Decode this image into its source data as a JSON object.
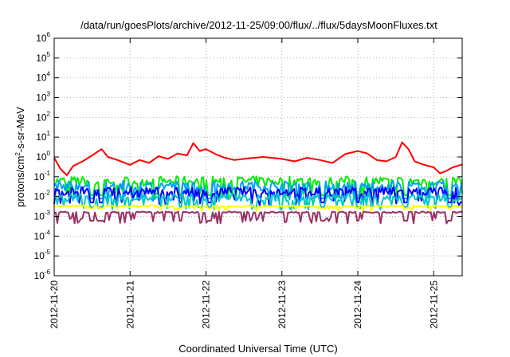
{
  "chart_data": {
    "type": "line",
    "title": "/data/run/goesPlots/archive/2012-11-25/09:00/flux/../flux/5daysMoonFluxes.txt",
    "xlabel": "Coordinated Universal Time (UTC)",
    "ylabel": {
      "prefix": "protons/cm",
      "sup": "2",
      "suffix": "-s-sr-MeV"
    },
    "y_scale": "log",
    "ylim": [
      1e-06,
      1000000.0
    ],
    "y_ticks": [
      {
        "base": "10",
        "exp": "-6"
      },
      {
        "base": "10",
        "exp": "-5"
      },
      {
        "base": "10",
        "exp": "-4"
      },
      {
        "base": "10",
        "exp": "-3"
      },
      {
        "base": "10",
        "exp": "-2"
      },
      {
        "base": "10",
        "exp": "-1"
      },
      {
        "base": "10",
        "exp": "0"
      },
      {
        "base": "10",
        "exp": "1"
      },
      {
        "base": "10",
        "exp": "2"
      },
      {
        "base": "10",
        "exp": "3"
      },
      {
        "base": "10",
        "exp": "4"
      },
      {
        "base": "10",
        "exp": "5"
      },
      {
        "base": "10",
        "exp": "6"
      }
    ],
    "x_ticks": [
      "2012-11-20",
      "2012-11-21",
      "2012-11-22",
      "2012-11-23",
      "2012-11-24",
      "2012-11-25"
    ],
    "xlim": [
      "2012-11-20T00:00",
      "2012-11-25T09:00"
    ],
    "grid": true,
    "series": [
      {
        "color": "#ff0000",
        "points": [
          [
            "2012-11-20T00:00",
            0.9
          ],
          [
            "2012-11-20T02:00",
            0.25
          ],
          [
            "2012-11-20T04:00",
            0.12
          ],
          [
            "2012-11-20T06:00",
            0.35
          ],
          [
            "2012-11-20T09:00",
            0.6
          ],
          [
            "2012-11-20T12:00",
            1.2
          ],
          [
            "2012-11-20T15:00",
            2.5
          ],
          [
            "2012-11-20T17:00",
            1.0
          ],
          [
            "2012-11-20T20:00",
            0.7
          ],
          [
            "2012-11-21T00:00",
            0.4
          ],
          [
            "2012-11-21T03:00",
            0.7
          ],
          [
            "2012-11-21T06:00",
            0.5
          ],
          [
            "2012-11-21T09:00",
            1.1
          ],
          [
            "2012-11-21T12:00",
            0.8
          ],
          [
            "2012-11-21T15:00",
            1.5
          ],
          [
            "2012-11-21T18:00",
            1.2
          ],
          [
            "2012-11-21T20:00",
            5.0
          ],
          [
            "2012-11-21T22:00",
            2.0
          ],
          [
            "2012-11-22T00:00",
            2.5
          ],
          [
            "2012-11-22T03:00",
            1.4
          ],
          [
            "2012-11-22T06:00",
            0.9
          ],
          [
            "2012-11-22T09:00",
            0.7
          ],
          [
            "2012-11-22T12:00",
            0.8
          ],
          [
            "2012-11-22T15:00",
            0.9
          ],
          [
            "2012-11-22T18:00",
            1.0
          ],
          [
            "2012-11-23T00:00",
            0.8
          ],
          [
            "2012-11-23T04:00",
            0.6
          ],
          [
            "2012-11-23T08:00",
            0.9
          ],
          [
            "2012-11-23T12:00",
            0.7
          ],
          [
            "2012-11-23T16:00",
            0.5
          ],
          [
            "2012-11-23T20:00",
            1.4
          ],
          [
            "2012-11-24T00:00",
            2.0
          ],
          [
            "2012-11-24T03:00",
            1.5
          ],
          [
            "2012-11-24T06:00",
            0.7
          ],
          [
            "2012-11-24T09:00",
            0.6
          ],
          [
            "2012-11-24T12:00",
            1.0
          ],
          [
            "2012-11-24T14:00",
            5.5
          ],
          [
            "2012-11-24T16:00",
            2.5
          ],
          [
            "2012-11-24T18:00",
            0.6
          ],
          [
            "2012-11-24T21:00",
            0.4
          ],
          [
            "2012-11-25T00:00",
            0.3
          ],
          [
            "2012-11-25T02:00",
            0.15
          ],
          [
            "2012-11-25T04:00",
            0.2
          ],
          [
            "2012-11-25T06:00",
            0.3
          ],
          [
            "2012-11-25T09:00",
            0.42
          ]
        ]
      },
      {
        "color": "#00ee00",
        "level": 0.06,
        "low": 0.012,
        "spread": 0.5
      },
      {
        "color": "#00a0ff",
        "level": 0.035,
        "low": 0.008,
        "spread": 0.5
      },
      {
        "color": "#0000ff",
        "level": 0.018,
        "low": 0.005,
        "spread": 0.45
      },
      {
        "color": "#00c8c8",
        "level": 0.009,
        "low": 0.003,
        "spread": 0.4
      },
      {
        "color": "#ffff00",
        "level": 0.0033,
        "low": 0.0025,
        "spread": 0.1
      },
      {
        "color": "#993366",
        "level": 0.0016,
        "low": 0.0006,
        "spread": 0.08
      }
    ]
  }
}
